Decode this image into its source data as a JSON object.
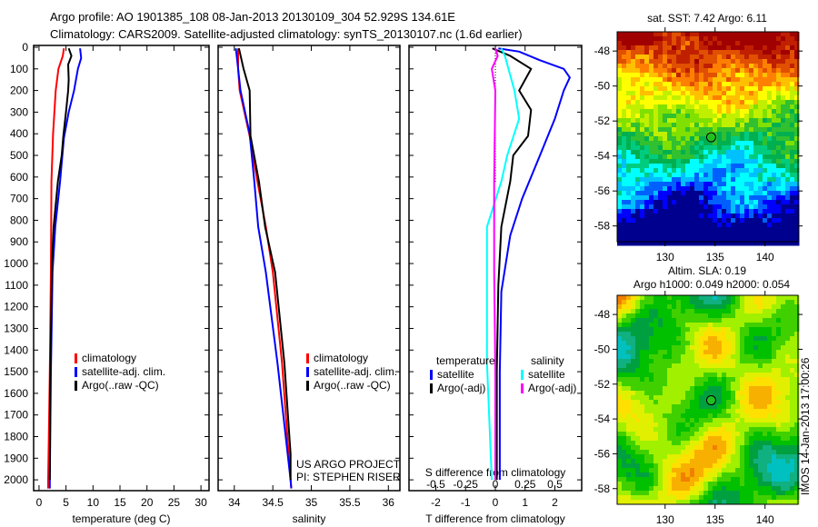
{
  "header": {
    "line1": "Argo profile: AO 1901385_108 08-Jan-2013 20130109_304 52.929S 134.61E",
    "line2": "Climatology: CARS2009. Satellite-adjusted climatology: synTS_20130107.nc (1.6d earlier)"
  },
  "credits": {
    "project": "US ARGO PROJECT",
    "pi": "PI: STEPHEN RISER",
    "stamp": "IMOS 14-Jan-2013 17:00:26"
  },
  "colors": {
    "climatology": "#ff0000",
    "satellite": "#0000ff",
    "argo": "#000000",
    "sal_satellite": "#00ffff",
    "sal_argo": "#ff00ff"
  },
  "chart_data": [
    {
      "type": "line",
      "id": "temperature",
      "xlabel": "temperature (deg C)",
      "ylabel": "",
      "xlim": [
        -1,
        31.5
      ],
      "ylim": [
        2050,
        0
      ],
      "xticks": [
        0,
        5,
        10,
        15,
        20,
        25,
        30
      ],
      "yticks": [
        0,
        100,
        200,
        300,
        400,
        500,
        600,
        700,
        800,
        900,
        1000,
        1100,
        1200,
        1300,
        1400,
        1500,
        1600,
        1700,
        1800,
        1900,
        2000
      ],
      "legend": [
        "climatology",
        "satellite-adj. clim.",
        "Argo(..raw -QC)"
      ],
      "series": [
        {
          "name": "climatology",
          "color": "#ff0000",
          "points": [
            [
              5,
              4.6
            ],
            [
              40,
              4.4
            ],
            [
              100,
              3.6
            ],
            [
              200,
              3.1
            ],
            [
              400,
              2.6
            ],
            [
              620,
              2.3
            ],
            [
              1040,
              2.2
            ],
            [
              1500,
              2.0
            ],
            [
              2000,
              1.7
            ],
            [
              2040,
              1.7
            ]
          ]
        },
        {
          "name": "satellite-adj. clim.",
          "color": "#0000ff",
          "points": [
            [
              5,
              7.6
            ],
            [
              50,
              7.8
            ],
            [
              100,
              7.2
            ],
            [
              200,
              6.5
            ],
            [
              300,
              5.5
            ],
            [
              420,
              4.6
            ],
            [
              620,
              3.9
            ],
            [
              830,
              3.0
            ],
            [
              1040,
              2.5
            ],
            [
              1500,
              2.2
            ],
            [
              2000,
              2.0
            ],
            [
              2040,
              2.0
            ]
          ]
        },
        {
          "name": "Argo(..raw -QC)",
          "color": "#000000",
          "points": [
            [
              5,
              5.5
            ],
            [
              40,
              6.0
            ],
            [
              80,
              5.4
            ],
            [
              150,
              5.5
            ],
            [
              200,
              5.4
            ],
            [
              300,
              5.0
            ],
            [
              410,
              4.5
            ],
            [
              500,
              4.2
            ],
            [
              620,
              3.5
            ],
            [
              830,
              2.7
            ],
            [
              1000,
              2.4
            ],
            [
              1500,
              2.1
            ],
            [
              2000,
              2.0
            ]
          ]
        }
      ]
    },
    {
      "type": "line",
      "id": "salinity",
      "xlabel": "salinity",
      "xlim": [
        33.79,
        36.15
      ],
      "ylim": [
        2050,
        0
      ],
      "xticks": [
        34,
        34.5,
        35,
        35.5,
        36
      ],
      "legend": [
        "climatology",
        "satellite-adj. clim.",
        "Argo(..raw -QC)"
      ],
      "series": [
        {
          "name": "climatology",
          "color": "#ff0000",
          "points": [
            [
              5,
              34.05
            ],
            [
              100,
              34.05
            ],
            [
              200,
              34.07
            ],
            [
              410,
              34.2
            ],
            [
              620,
              34.3
            ],
            [
              830,
              34.41
            ],
            [
              1040,
              34.5
            ],
            [
              1460,
              34.62
            ],
            [
              2000,
              34.73
            ],
            [
              2040,
              34.74
            ]
          ]
        },
        {
          "name": "satellite-adj. clim.",
          "color": "#0000ff",
          "points": [
            [
              5,
              34.02
            ],
            [
              100,
              34.05
            ],
            [
              200,
              34.08
            ],
            [
              400,
              34.2
            ],
            [
              620,
              34.26
            ],
            [
              830,
              34.31
            ],
            [
              1040,
              34.41
            ],
            [
              1460,
              34.56
            ],
            [
              2000,
              34.73
            ],
            [
              2040,
              34.74
            ]
          ]
        },
        {
          "name": "Argo(..raw -QC)",
          "color": "#000000",
          "points": [
            [
              5,
              34.06
            ],
            [
              100,
              34.12
            ],
            [
              200,
              34.2
            ],
            [
              410,
              34.21
            ],
            [
              620,
              34.32
            ],
            [
              830,
              34.4
            ],
            [
              1040,
              34.53
            ],
            [
              1460,
              34.65
            ],
            [
              1880,
              34.73
            ],
            [
              2000,
              34.73
            ]
          ]
        }
      ]
    },
    {
      "type": "line",
      "id": "differences",
      "xlabel": "T difference from climatology",
      "x2label": "S difference from climatology",
      "xlim": [
        -2.9,
        2.9
      ],
      "ylim": [
        2050,
        0
      ],
      "xticks": [
        -2,
        -1,
        0,
        1,
        2
      ],
      "x2ticks": [
        -0.5,
        -0.25,
        0,
        0.25,
        0.5
      ],
      "legend_titles": [
        "temperature",
        "salinity"
      ],
      "legend": [
        "satellite",
        "Argo(-adj)",
        "satellite",
        "Argo(-adj)"
      ],
      "series": [
        {
          "name": "T satellite",
          "color": "#0000ff",
          "units": "T",
          "points": [
            [
              5,
              0.1
            ],
            [
              20,
              0.8
            ],
            [
              60,
              1.5
            ],
            [
              100,
              2.3
            ],
            [
              140,
              2.5
            ],
            [
              200,
              2.3
            ],
            [
              330,
              2.0
            ],
            [
              500,
              1.5
            ],
            [
              700,
              0.9
            ],
            [
              870,
              0.5
            ],
            [
              1130,
              0.2
            ],
            [
              1500,
              0.15
            ],
            [
              2000,
              0.15
            ]
          ]
        },
        {
          "name": "T Argo(-adj)",
          "color": "#000000",
          "units": "T",
          "points": [
            [
              5,
              -0.1
            ],
            [
              40,
              0.5
            ],
            [
              100,
              1.2
            ],
            [
              200,
              0.8
            ],
            [
              290,
              1.2
            ],
            [
              410,
              1.1
            ],
            [
              500,
              0.6
            ],
            [
              620,
              0.5
            ],
            [
              830,
              0.2
            ],
            [
              1100,
              0.1
            ],
            [
              1500,
              0.05
            ],
            [
              2000,
              0.05
            ]
          ]
        },
        {
          "name": "S satellite",
          "color": "#00ffff",
          "units": "S",
          "points": [
            [
              5,
              0.05
            ],
            [
              40,
              0.08
            ],
            [
              200,
              0.16
            ],
            [
              330,
              0.2
            ],
            [
              500,
              0.1
            ],
            [
              620,
              0.05
            ],
            [
              830,
              -0.07
            ],
            [
              1460,
              -0.07
            ],
            [
              2000,
              -0.03
            ]
          ]
        },
        {
          "name": "S Argo(-adj)",
          "color": "#ff00ff",
          "units": "S",
          "points": [
            [
              5,
              0.0
            ],
            [
              40,
              0.02
            ],
            [
              100,
              -0.03
            ],
            [
              200,
              0.0
            ],
            [
              620,
              -0.01
            ],
            [
              1040,
              -0.01
            ],
            [
              1500,
              0.0
            ],
            [
              2000,
              0.0
            ]
          ]
        }
      ]
    },
    {
      "type": "heatmap",
      "id": "sst-map",
      "title": "sat. SST: 7.42  Argo: 6.11",
      "xlim": [
        125.2,
        143.3
      ],
      "ylim": [
        -58.9,
        -46.9
      ],
      "xticks": [
        130,
        135,
        140
      ],
      "yticks": [
        -48,
        -50,
        -52,
        -54,
        -56,
        -58
      ],
      "marker": {
        "lon": 134.61,
        "lat": -52.929
      }
    },
    {
      "type": "heatmap",
      "id": "sla-map",
      "title": "Altim. SLA: 0.19",
      "subtitle": "Argo h1000: 0.049 h2000: 0.054",
      "xlim": [
        125.2,
        143.3
      ],
      "ylim": [
        -58.9,
        -46.9
      ],
      "xticks": [
        130,
        135,
        140
      ],
      "yticks": [
        -48,
        -50,
        -52,
        -54,
        -56,
        -58
      ],
      "marker": {
        "lon": 134.61,
        "lat": -52.929
      }
    }
  ]
}
